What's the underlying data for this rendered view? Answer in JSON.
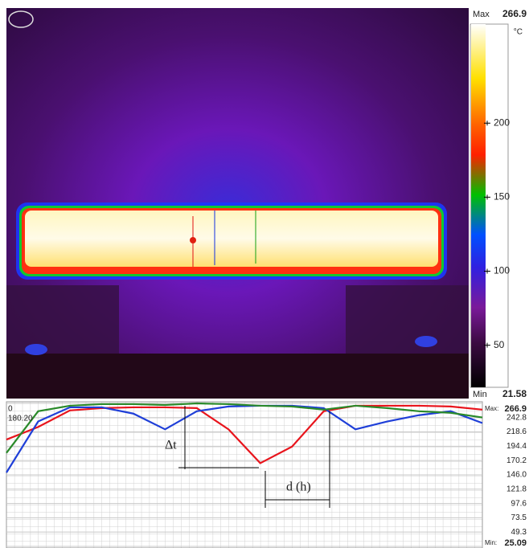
{
  "colorbar": {
    "max_label": "Max",
    "max": 266.9,
    "min_label": "Min",
    "min": 21.58,
    "unit": "°C",
    "ticks": [
      200,
      150,
      100,
      50
    ]
  },
  "chart_data": {
    "type": "line",
    "categories": [
      null,
      null,
      null,
      null,
      null,
      null,
      null,
      null,
      null,
      null,
      null,
      null,
      null,
      null,
      null,
      null
    ],
    "series": [
      {
        "color": "#e8141c",
        "values": [
          205.7,
          227,
          254.9,
          258.9,
          260.2,
          260.2,
          258.9,
          223,
          165.8,
          193.7,
          253.6,
          262.9,
          262.9,
          262.9,
          261.6,
          256.3
        ]
      },
      {
        "color": "#1f3fd8",
        "values": [
          149.9,
          236.3,
          260.2,
          260.2,
          249.6,
          223,
          253.6,
          261.6,
          262.9,
          262.9,
          258.9,
          223,
          236.3,
          246.9,
          253.6,
          233.6
        ]
      },
      {
        "color": "#2a8a2a",
        "values": [
          183.1,
          253.6,
          262.9,
          265.6,
          265.6,
          264.2,
          266.9,
          265.6,
          262.9,
          261.6,
          256.3,
          262.9,
          258.9,
          253.6,
          250.9,
          243
        ]
      }
    ],
    "ylim": [
      25.09,
      266.9
    ],
    "yticks": [
      266.9,
      242.8,
      218.6,
      194.4,
      170.2,
      {
        "value": 146,
        "label": "146.0"
      },
      121.8,
      97.6,
      73.5,
      49.3,
      25.09
    ],
    "max_label": "Max:",
    "min_label": "Min:",
    "corner_labels": [
      "0",
      "180.20"
    ],
    "annotations": [
      "Δt",
      "d (h)"
    ],
    "grid": true
  }
}
